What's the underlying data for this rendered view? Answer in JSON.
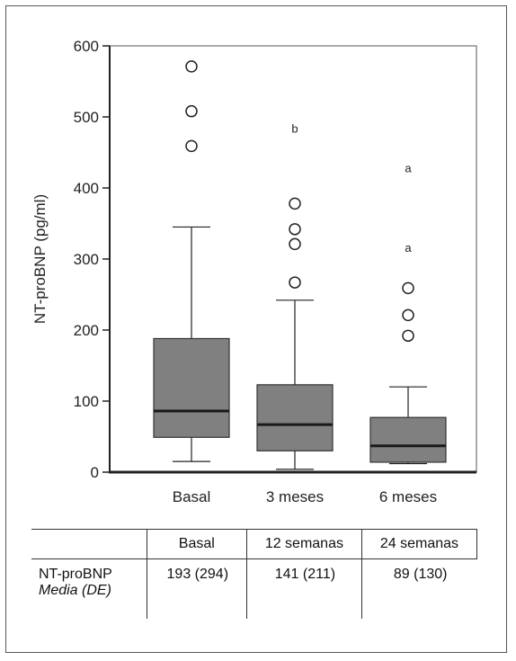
{
  "chart_data": {
    "type": "box",
    "ylabel": "NT-proBNP (pg/ml)",
    "ylim": [
      0,
      600
    ],
    "yticks": [
      0,
      100,
      200,
      300,
      400,
      500,
      600
    ],
    "grid": false,
    "categories": [
      "Basal",
      "3 meses",
      "6 meses"
    ],
    "boxes": [
      {
        "category": "Basal",
        "whisker_low": 15,
        "q1": 49,
        "median": 86,
        "q3": 188,
        "whisker_high": 345,
        "outliers": [
          459,
          508,
          571
        ]
      },
      {
        "category": "3 meses",
        "whisker_low": 4,
        "q1": 30,
        "median": 67,
        "q3": 123,
        "whisker_high": 242,
        "outliers": [
          267,
          321,
          342,
          378
        ]
      },
      {
        "category": "6 meses",
        "whisker_low": 12,
        "q1": 14,
        "median": 37,
        "q3": 77,
        "whisker_high": 120,
        "outliers": [
          192,
          221,
          259
        ]
      }
    ],
    "annotations": [
      {
        "category": "3 meses",
        "y": 483,
        "text": "b"
      },
      {
        "category": "6 meses",
        "y": 427,
        "text": "a"
      },
      {
        "category": "6 meses",
        "y": 315,
        "text": "a"
      }
    ],
    "colors": {
      "box_fill": "#808080",
      "median": "#1a1a1a",
      "axis": "#222222"
    }
  },
  "table": {
    "headers": [
      "",
      "Basal",
      "12 semanas",
      "24 semanas"
    ],
    "row_label": "NT-proBNP",
    "row_sublabel": "Media (DE)",
    "values": [
      "193 (294)",
      "141 (211)",
      "89 (130)"
    ]
  }
}
